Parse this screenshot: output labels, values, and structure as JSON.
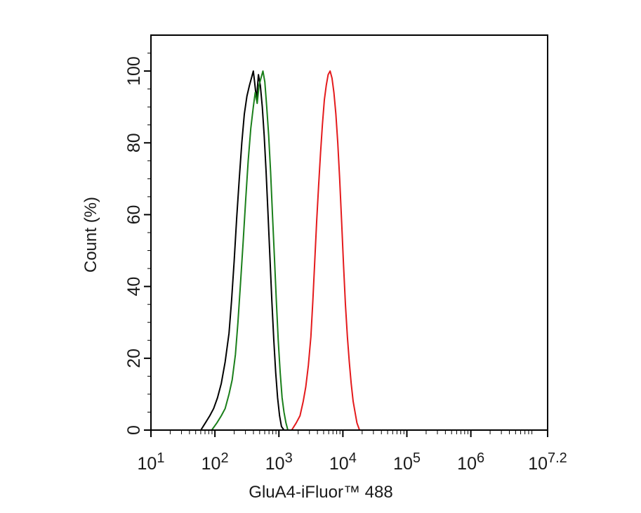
{
  "chart_data": {
    "type": "line",
    "title": "",
    "xlabel": "GluA4-iFluor™ 488",
    "ylabel": "Count  (%)",
    "x_scale": "log10",
    "xlim": [
      1,
      7.2
    ],
    "ylim": [
      0,
      110
    ],
    "x_ticks": [
      {
        "value": 1,
        "base": "10",
        "exp": "1"
      },
      {
        "value": 2,
        "base": "10",
        "exp": "2"
      },
      {
        "value": 3,
        "base": "10",
        "exp": "3"
      },
      {
        "value": 4,
        "base": "10",
        "exp": "4"
      },
      {
        "value": 5,
        "base": "10",
        "exp": "5"
      },
      {
        "value": 6,
        "base": "10",
        "exp": "6"
      },
      {
        "value": 7.2,
        "base": "10",
        "exp": "7.2"
      }
    ],
    "y_ticks": [
      0,
      20,
      40,
      60,
      80,
      100
    ],
    "grid": false,
    "series": [
      {
        "color": "#000000",
        "points": [
          [
            1.78,
            0
          ],
          [
            1.85,
            2
          ],
          [
            1.92,
            4
          ],
          [
            1.98,
            6
          ],
          [
            2.04,
            9
          ],
          [
            2.1,
            13
          ],
          [
            2.16,
            19
          ],
          [
            2.22,
            27
          ],
          [
            2.26,
            36
          ],
          [
            2.3,
            47
          ],
          [
            2.34,
            59
          ],
          [
            2.38,
            70
          ],
          [
            2.42,
            80
          ],
          [
            2.46,
            88
          ],
          [
            2.5,
            93
          ],
          [
            2.54,
            96
          ],
          [
            2.57,
            98
          ],
          [
            2.6,
            100
          ],
          [
            2.62,
            97
          ],
          [
            2.65,
            92
          ],
          [
            2.68,
            99
          ],
          [
            2.71,
            96
          ],
          [
            2.74,
            90
          ],
          [
            2.77,
            82
          ],
          [
            2.8,
            72
          ],
          [
            2.83,
            60
          ],
          [
            2.86,
            48
          ],
          [
            2.89,
            36
          ],
          [
            2.92,
            25
          ],
          [
            2.95,
            16
          ],
          [
            2.98,
            9
          ],
          [
            3.01,
            4
          ],
          [
            3.04,
            1
          ],
          [
            3.08,
            0
          ]
        ]
      },
      {
        "color": "#1a7f1a",
        "points": [
          [
            1.95,
            0
          ],
          [
            2.03,
            2
          ],
          [
            2.1,
            4
          ],
          [
            2.16,
            6
          ],
          [
            2.22,
            10
          ],
          [
            2.27,
            14
          ],
          [
            2.32,
            21
          ],
          [
            2.36,
            30
          ],
          [
            2.4,
            41
          ],
          [
            2.44,
            52
          ],
          [
            2.48,
            64
          ],
          [
            2.52,
            75
          ],
          [
            2.56,
            84
          ],
          [
            2.6,
            90
          ],
          [
            2.63,
            94
          ],
          [
            2.66,
            91
          ],
          [
            2.69,
            96
          ],
          [
            2.72,
            98
          ],
          [
            2.75,
            100
          ],
          [
            2.78,
            97
          ],
          [
            2.81,
            90
          ],
          [
            2.84,
            82
          ],
          [
            2.87,
            72
          ],
          [
            2.9,
            60
          ],
          [
            2.93,
            48
          ],
          [
            2.96,
            36
          ],
          [
            2.99,
            25
          ],
          [
            3.02,
            16
          ],
          [
            3.05,
            9
          ],
          [
            3.08,
            5
          ],
          [
            3.11,
            2
          ],
          [
            3.14,
            0
          ]
        ]
      },
      {
        "color": "#e41a1c",
        "points": [
          [
            3.2,
            0
          ],
          [
            3.27,
            2
          ],
          [
            3.33,
            4
          ],
          [
            3.38,
            8
          ],
          [
            3.42,
            12
          ],
          [
            3.46,
            18
          ],
          [
            3.5,
            26
          ],
          [
            3.53,
            36
          ],
          [
            3.56,
            47
          ],
          [
            3.59,
            58
          ],
          [
            3.62,
            68
          ],
          [
            3.65,
            77
          ],
          [
            3.68,
            85
          ],
          [
            3.71,
            92
          ],
          [
            3.74,
            96
          ],
          [
            3.77,
            99
          ],
          [
            3.8,
            100
          ],
          [
            3.83,
            98
          ],
          [
            3.86,
            94
          ],
          [
            3.89,
            88
          ],
          [
            3.92,
            80
          ],
          [
            3.95,
            70
          ],
          [
            3.98,
            58
          ],
          [
            4.01,
            46
          ],
          [
            4.04,
            35
          ],
          [
            4.07,
            26
          ],
          [
            4.1,
            19
          ],
          [
            4.13,
            13
          ],
          [
            4.16,
            8
          ],
          [
            4.19,
            5
          ],
          [
            4.22,
            2
          ],
          [
            4.26,
            0
          ]
        ]
      }
    ]
  }
}
